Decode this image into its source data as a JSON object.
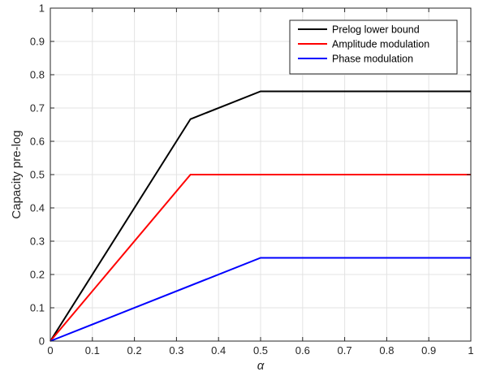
{
  "chart_data": {
    "type": "line",
    "title": "",
    "xlabel": "α",
    "ylabel": "Capacity pre-log",
    "xlim": [
      0,
      1
    ],
    "ylim": [
      0,
      1
    ],
    "xticks": [
      0,
      0.1,
      0.2,
      0.3,
      0.4,
      0.5,
      0.6,
      0.7,
      0.8,
      0.9,
      1
    ],
    "xtick_labels": [
      "0",
      "0.1",
      "0.2",
      "0.3",
      "0.4",
      "0.5",
      "0.6",
      "0.7",
      "0.8",
      "0.9",
      "1"
    ],
    "yticks": [
      0,
      0.1,
      0.2,
      0.3,
      0.4,
      0.5,
      0.6,
      0.7,
      0.8,
      0.9,
      1
    ],
    "ytick_labels": [
      "0",
      "0.1",
      "0.2",
      "0.3",
      "0.4",
      "0.5",
      "0.6",
      "0.7",
      "0.8",
      "0.9",
      "1"
    ],
    "grid": true,
    "legend_position": "top-right",
    "series": [
      {
        "name": "Prelog lower bound",
        "color": "#000000",
        "x": [
          0,
          0.3333,
          0.5,
          1
        ],
        "y": [
          0,
          0.6667,
          0.75,
          0.75
        ]
      },
      {
        "name": "Amplitude modulation",
        "color": "#ff0000",
        "x": [
          0,
          0.3333,
          1
        ],
        "y": [
          0,
          0.5,
          0.5
        ]
      },
      {
        "name": "Phase modulation",
        "color": "#0000ff",
        "x": [
          0,
          0.5,
          1
        ],
        "y": [
          0,
          0.25,
          0.25
        ]
      }
    ]
  }
}
